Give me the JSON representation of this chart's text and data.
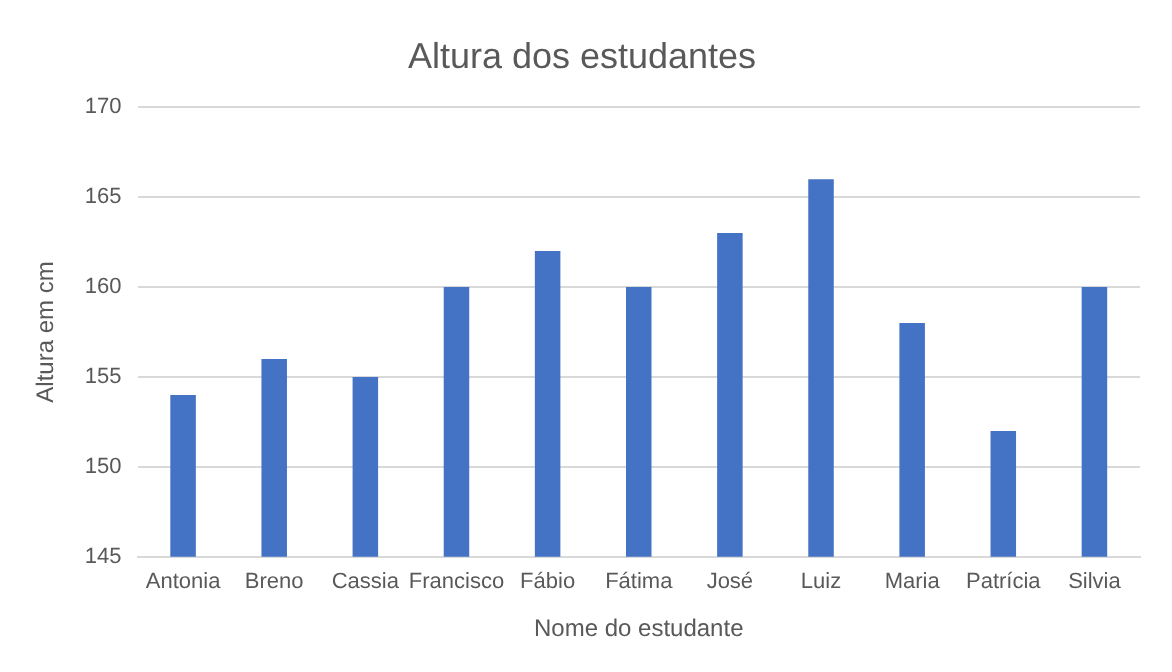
{
  "chart_data": {
    "type": "bar",
    "title": "Altura dos estudantes",
    "xlabel": "Nome do estudante",
    "ylabel": "Altura em cm",
    "categories": [
      "Antonia",
      "Breno",
      "Cassia",
      "Francisco",
      "Fábio",
      "Fátima",
      "José",
      "Luiz",
      "Maria",
      "Patrícia",
      "Silvia"
    ],
    "values": [
      154,
      156,
      155,
      160,
      162,
      160,
      163,
      166,
      158,
      152,
      160
    ],
    "color": "#4472c4",
    "ylim": [
      145,
      170
    ],
    "yticks": [
      145,
      150,
      155,
      160,
      165,
      170
    ],
    "grid": "y",
    "legend": false
  }
}
